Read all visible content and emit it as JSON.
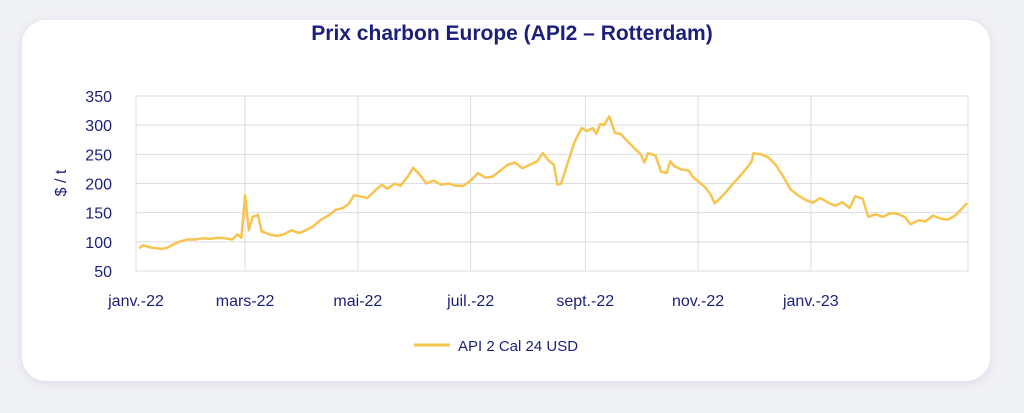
{
  "chart_data": {
    "type": "line",
    "title": "Prix charbon Europe (API2 – Rotterdam)",
    "ylabel": "$ / t",
    "xlabel": "",
    "ylim": [
      50,
      350
    ],
    "yticks": [
      50,
      100,
      150,
      200,
      250,
      300,
      350
    ],
    "xticks": [
      "janv.-22",
      "mars-22",
      "mai-22",
      "juil.-22",
      "sept.-22",
      "nov.-22",
      "janv.-23"
    ],
    "xlim": [
      "2022-01-01",
      "2023-03-27"
    ],
    "grid": true,
    "legend": "bottom",
    "color": "#f7c44f",
    "series": [
      {
        "name": "API 2 Cal 24 USD",
        "points": [
          [
            "2022-01-03",
            90
          ],
          [
            "2022-01-05",
            94
          ],
          [
            "2022-01-08",
            91
          ],
          [
            "2022-01-12",
            89
          ],
          [
            "2022-01-15",
            88
          ],
          [
            "2022-01-18",
            90
          ],
          [
            "2022-01-22",
            97
          ],
          [
            "2022-01-25",
            101
          ],
          [
            "2022-01-29",
            104
          ],
          [
            "2022-02-02",
            104
          ],
          [
            "2022-02-06",
            106
          ],
          [
            "2022-02-10",
            105
          ],
          [
            "2022-02-14",
            107
          ],
          [
            "2022-02-18",
            106
          ],
          [
            "2022-02-22",
            104
          ],
          [
            "2022-02-25",
            113
          ],
          [
            "2022-02-27",
            107
          ],
          [
            "2022-03-01",
            180
          ],
          [
            "2022-03-03",
            120
          ],
          [
            "2022-03-05",
            143
          ],
          [
            "2022-03-08",
            146
          ],
          [
            "2022-03-10",
            118
          ],
          [
            "2022-03-14",
            113
          ],
          [
            "2022-03-18",
            110
          ],
          [
            "2022-03-22",
            113
          ],
          [
            "2022-03-26",
            120
          ],
          [
            "2022-03-30",
            115
          ],
          [
            "2022-04-03",
            120
          ],
          [
            "2022-04-07",
            127
          ],
          [
            "2022-04-11",
            138
          ],
          [
            "2022-04-15",
            145
          ],
          [
            "2022-04-19",
            155
          ],
          [
            "2022-04-23",
            158
          ],
          [
            "2022-04-26",
            165
          ],
          [
            "2022-04-29",
            180
          ],
          [
            "2022-05-02",
            178
          ],
          [
            "2022-05-06",
            175
          ],
          [
            "2022-05-10",
            187
          ],
          [
            "2022-05-14",
            198
          ],
          [
            "2022-05-17",
            191
          ],
          [
            "2022-05-21",
            200
          ],
          [
            "2022-05-24",
            196
          ],
          [
            "2022-05-28",
            212
          ],
          [
            "2022-05-31",
            227
          ],
          [
            "2022-06-04",
            213
          ],
          [
            "2022-06-07",
            200
          ],
          [
            "2022-06-11",
            205
          ],
          [
            "2022-06-15",
            198
          ],
          [
            "2022-06-19",
            200
          ],
          [
            "2022-06-23",
            196
          ],
          [
            "2022-06-27",
            196
          ],
          [
            "2022-07-01",
            205
          ],
          [
            "2022-07-05",
            218
          ],
          [
            "2022-07-09",
            210
          ],
          [
            "2022-07-13",
            212
          ],
          [
            "2022-07-17",
            222
          ],
          [
            "2022-07-21",
            232
          ],
          [
            "2022-07-25",
            236
          ],
          [
            "2022-07-29",
            226
          ],
          [
            "2022-08-02",
            232
          ],
          [
            "2022-08-06",
            238
          ],
          [
            "2022-08-09",
            252
          ],
          [
            "2022-08-12",
            240
          ],
          [
            "2022-08-15",
            232
          ],
          [
            "2022-08-17",
            198
          ],
          [
            "2022-08-19",
            200
          ],
          [
            "2022-08-22",
            230
          ],
          [
            "2022-08-26",
            270
          ],
          [
            "2022-08-30",
            295
          ],
          [
            "2022-09-02",
            290
          ],
          [
            "2022-09-05",
            295
          ],
          [
            "2022-09-07",
            285
          ],
          [
            "2022-09-09",
            302
          ],
          [
            "2022-09-11",
            300
          ],
          [
            "2022-09-14",
            315
          ],
          [
            "2022-09-17",
            287
          ],
          [
            "2022-09-20",
            285
          ],
          [
            "2022-09-24",
            272
          ],
          [
            "2022-09-27",
            262
          ],
          [
            "2022-10-01",
            250
          ],
          [
            "2022-10-03",
            236
          ],
          [
            "2022-10-05",
            252
          ],
          [
            "2022-10-09",
            248
          ],
          [
            "2022-10-12",
            220
          ],
          [
            "2022-10-15",
            218
          ],
          [
            "2022-10-17",
            238
          ],
          [
            "2022-10-19",
            230
          ],
          [
            "2022-10-23",
            224
          ],
          [
            "2022-10-27",
            222
          ],
          [
            "2022-10-29",
            212
          ],
          [
            "2022-11-02",
            201
          ],
          [
            "2022-11-05",
            193
          ],
          [
            "2022-11-08",
            180
          ],
          [
            "2022-11-10",
            166
          ],
          [
            "2022-11-13",
            175
          ],
          [
            "2022-11-16",
            185
          ],
          [
            "2022-11-20",
            200
          ],
          [
            "2022-11-24",
            214
          ],
          [
            "2022-11-27",
            225
          ],
          [
            "2022-11-30",
            238
          ],
          [
            "2022-12-01",
            252
          ],
          [
            "2022-12-05",
            250
          ],
          [
            "2022-12-09",
            245
          ],
          [
            "2022-12-13",
            232
          ],
          [
            "2022-12-17",
            212
          ],
          [
            "2022-12-21",
            190
          ],
          [
            "2022-12-25",
            180
          ],
          [
            "2022-12-29",
            172
          ],
          [
            "2023-01-02",
            167
          ],
          [
            "2023-01-06",
            175
          ],
          [
            "2023-01-10",
            168
          ],
          [
            "2023-01-14",
            162
          ],
          [
            "2023-01-18",
            168
          ],
          [
            "2023-01-22",
            158
          ],
          [
            "2023-01-25",
            178
          ],
          [
            "2023-01-29",
            174
          ],
          [
            "2023-02-01",
            143
          ],
          [
            "2023-02-05",
            147
          ],
          [
            "2023-02-09",
            143
          ],
          [
            "2023-02-13",
            149
          ],
          [
            "2023-02-17",
            148
          ],
          [
            "2023-02-21",
            142
          ],
          [
            "2023-02-24",
            130
          ],
          [
            "2023-02-28",
            137
          ],
          [
            "2023-03-04",
            135
          ],
          [
            "2023-03-08",
            145
          ],
          [
            "2023-03-12",
            140
          ],
          [
            "2023-03-16",
            138
          ],
          [
            "2023-03-20",
            145
          ],
          [
            "2023-03-24",
            158
          ],
          [
            "2023-03-26",
            165
          ]
        ]
      }
    ]
  }
}
